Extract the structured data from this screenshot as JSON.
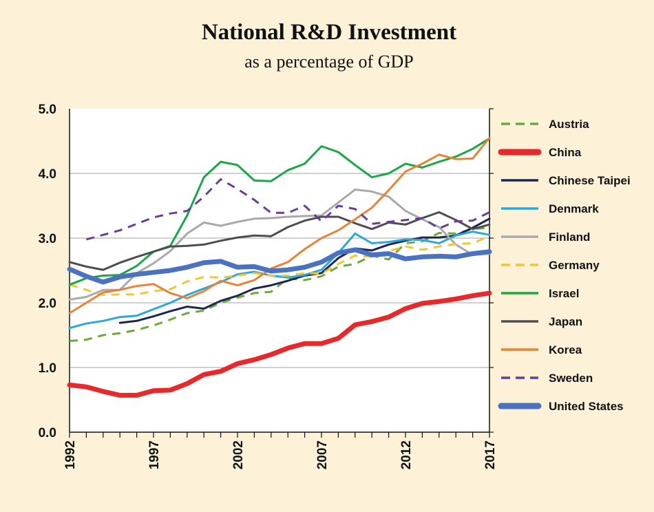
{
  "chart_data": {
    "type": "line",
    "title": "National R&D Investment",
    "subtitle": "as a percentage of GDP",
    "xlabel": "",
    "ylabel": "",
    "xlim": [
      1992,
      2017
    ],
    "ylim": [
      0,
      5
    ],
    "grid": true,
    "legend_position": "right",
    "x_ticks": [
      1992,
      1997,
      2002,
      2007,
      2012,
      2017
    ],
    "y_ticks": [
      0,
      1,
      2,
      3,
      4,
      5
    ],
    "y_tick_labels": [
      "0.0",
      "1.0",
      "2.0",
      "3.0",
      "4.0",
      "5.0"
    ],
    "x_tick_labels": [
      "1992",
      "1997",
      "2002",
      "2007",
      "2012",
      "2017"
    ],
    "series": [
      {
        "name": "Austria",
        "color": "#6aaa3a",
        "dashed": true,
        "heavy": false,
        "x": [
          1992,
          1993,
          1994,
          1995,
          1996,
          1997,
          1998,
          1999,
          2000,
          2001,
          2002,
          2003,
          2004,
          2005,
          2006,
          2007,
          2008,
          2009,
          2010,
          2011,
          2012,
          2013,
          2014,
          2015,
          2016,
          2017
        ],
        "values": [
          1.41,
          1.43,
          1.5,
          1.53,
          1.58,
          1.65,
          1.74,
          1.84,
          1.88,
          2.0,
          2.08,
          2.15,
          2.17,
          2.38,
          2.35,
          2.41,
          2.56,
          2.6,
          2.73,
          2.67,
          2.92,
          2.95,
          3.08,
          3.07,
          3.14,
          3.16
        ]
      },
      {
        "name": "China",
        "color": "#e8292b",
        "dashed": false,
        "heavy": true,
        "x": [
          1992,
          1993,
          1994,
          1995,
          1996,
          1997,
          1998,
          1999,
          2000,
          2001,
          2002,
          2003,
          2004,
          2005,
          2006,
          2007,
          2008,
          2009,
          2010,
          2011,
          2012,
          2013,
          2014,
          2015,
          2016,
          2017
        ],
        "values": [
          0.73,
          0.7,
          0.63,
          0.57,
          0.57,
          0.64,
          0.65,
          0.75,
          0.89,
          0.94,
          1.06,
          1.12,
          1.2,
          1.3,
          1.37,
          1.37,
          1.45,
          1.66,
          1.71,
          1.78,
          1.91,
          1.99,
          2.02,
          2.06,
          2.11,
          2.15
        ]
      },
      {
        "name": "Chinese Taipei",
        "color": "#1c2650",
        "dashed": false,
        "heavy": false,
        "x": [
          1995,
          1996,
          1997,
          1998,
          1999,
          2000,
          2001,
          2002,
          2003,
          2004,
          2005,
          2006,
          2007,
          2008,
          2009,
          2010,
          2011,
          2012,
          2013,
          2014,
          2015,
          2016,
          2017
        ],
        "values": [
          1.69,
          1.72,
          1.79,
          1.87,
          1.94,
          1.91,
          2.03,
          2.11,
          2.22,
          2.27,
          2.34,
          2.42,
          2.46,
          2.69,
          2.84,
          2.81,
          2.9,
          2.96,
          3.01,
          3.01,
          3.04,
          3.16,
          3.3
        ]
      },
      {
        "name": "Denmark",
        "color": "#29a8e0",
        "dashed": false,
        "heavy": false,
        "x": [
          1992,
          1993,
          1994,
          1995,
          1996,
          1997,
          1998,
          1999,
          2000,
          2001,
          2002,
          2003,
          2004,
          2005,
          2006,
          2007,
          2008,
          2009,
          2010,
          2011,
          2012,
          2013,
          2014,
          2015,
          2016,
          2017
        ],
        "values": [
          1.61,
          1.68,
          1.72,
          1.78,
          1.8,
          1.9,
          2.0,
          2.12,
          2.22,
          2.32,
          2.44,
          2.48,
          2.42,
          2.39,
          2.43,
          2.51,
          2.77,
          3.07,
          2.92,
          2.94,
          2.98,
          2.97,
          2.92,
          3.04,
          3.1,
          3.05
        ]
      },
      {
        "name": "Finland",
        "color": "#a9a9a9",
        "dashed": false,
        "heavy": false,
        "x": [
          1992,
          1993,
          1994,
          1995,
          1996,
          1997,
          1998,
          1999,
          2000,
          2001,
          2002,
          2003,
          2004,
          2005,
          2006,
          2007,
          2008,
          2009,
          2010,
          2011,
          2012,
          2013,
          2014,
          2015,
          2016,
          2017
        ],
        "values": [
          2.05,
          2.09,
          2.2,
          2.2,
          2.46,
          2.61,
          2.8,
          3.07,
          3.24,
          3.19,
          3.25,
          3.3,
          3.31,
          3.33,
          3.34,
          3.35,
          3.55,
          3.75,
          3.72,
          3.64,
          3.42,
          3.29,
          3.17,
          2.9,
          2.74,
          2.76
        ]
      },
      {
        "name": "Germany",
        "color": "#f4c530",
        "dashed": true,
        "heavy": false,
        "x": [
          1992,
          1993,
          1994,
          1995,
          1996,
          1997,
          1998,
          1999,
          2000,
          2001,
          2002,
          2003,
          2004,
          2005,
          2006,
          2007,
          2008,
          2009,
          2010,
          2011,
          2012,
          2013,
          2014,
          2015,
          2016,
          2017
        ],
        "values": [
          2.28,
          2.2,
          2.12,
          2.13,
          2.13,
          2.18,
          2.21,
          2.33,
          2.4,
          2.39,
          2.42,
          2.46,
          2.42,
          2.42,
          2.46,
          2.45,
          2.6,
          2.73,
          2.71,
          2.8,
          2.87,
          2.82,
          2.87,
          2.91,
          2.92,
          3.03
        ]
      },
      {
        "name": "Israel",
        "color": "#17a844",
        "dashed": false,
        "heavy": false,
        "x": [
          1992,
          1993,
          1994,
          1995,
          1996,
          1997,
          1998,
          1999,
          2000,
          2001,
          2002,
          2003,
          2004,
          2005,
          2006,
          2007,
          2008,
          2009,
          2010,
          2011,
          2012,
          2013,
          2014,
          2015,
          2016,
          2017
        ],
        "values": [
          2.28,
          2.38,
          2.42,
          2.43,
          2.57,
          2.79,
          2.88,
          3.35,
          3.94,
          4.18,
          4.13,
          3.89,
          3.88,
          4.05,
          4.15,
          4.42,
          4.33,
          4.13,
          3.94,
          4.0,
          4.15,
          4.09,
          4.18,
          4.26,
          4.38,
          4.54
        ]
      },
      {
        "name": "Japan",
        "color": "#4d4d4d",
        "dashed": false,
        "heavy": false,
        "x": [
          1992,
          1993,
          1994,
          1995,
          1996,
          1997,
          1998,
          1999,
          2000,
          2001,
          2002,
          2003,
          2004,
          2005,
          2006,
          2007,
          2008,
          2009,
          2010,
          2011,
          2012,
          2013,
          2014,
          2015,
          2016,
          2017
        ],
        "values": [
          2.63,
          2.56,
          2.51,
          2.62,
          2.71,
          2.79,
          2.87,
          2.88,
          2.9,
          2.96,
          3.01,
          3.04,
          3.03,
          3.17,
          3.27,
          3.33,
          3.33,
          3.23,
          3.14,
          3.24,
          3.21,
          3.31,
          3.4,
          3.28,
          3.14,
          3.21
        ]
      },
      {
        "name": "Korea",
        "color": "#ea8134",
        "dashed": false,
        "heavy": false,
        "x": [
          1992,
          1993,
          1994,
          1995,
          1996,
          1997,
          1998,
          1999,
          2000,
          2001,
          2002,
          2003,
          2004,
          2005,
          2006,
          2007,
          2008,
          2009,
          2010,
          2011,
          2012,
          2013,
          2014,
          2015,
          2016,
          2017
        ],
        "values": [
          1.84,
          2.0,
          2.16,
          2.2,
          2.26,
          2.29,
          2.15,
          2.07,
          2.18,
          2.34,
          2.27,
          2.35,
          2.53,
          2.63,
          2.83,
          3.0,
          3.12,
          3.29,
          3.47,
          3.74,
          4.03,
          4.15,
          4.29,
          4.22,
          4.23,
          4.55
        ]
      },
      {
        "name": "Sweden",
        "color": "#6b3d9a",
        "dashed": true,
        "heavy": false,
        "x": [
          1993,
          1994,
          1995,
          1996,
          1997,
          1998,
          1999,
          2000,
          2001,
          2002,
          2003,
          2004,
          2005,
          2006,
          2007,
          2008,
          2009,
          2010,
          2011,
          2012,
          2013,
          2014,
          2015,
          2016,
          2017
        ],
        "values": [
          2.98,
          3.05,
          3.12,
          3.22,
          3.32,
          3.38,
          3.42,
          3.64,
          3.91,
          3.76,
          3.59,
          3.39,
          3.39,
          3.5,
          3.26,
          3.5,
          3.45,
          3.22,
          3.25,
          3.28,
          3.31,
          3.15,
          3.26,
          3.27,
          3.4
        ]
      },
      {
        "name": "United States",
        "color": "#4a72c0",
        "dashed": false,
        "heavy": true,
        "x": [
          1992,
          1993,
          1994,
          1995,
          1996,
          1997,
          1998,
          1999,
          2000,
          2001,
          2002,
          2003,
          2004,
          2005,
          2006,
          2007,
          2008,
          2009,
          2010,
          2011,
          2012,
          2013,
          2014,
          2015,
          2016,
          2017
        ],
        "values": [
          2.52,
          2.41,
          2.32,
          2.4,
          2.44,
          2.47,
          2.5,
          2.55,
          2.62,
          2.64,
          2.55,
          2.56,
          2.49,
          2.51,
          2.55,
          2.63,
          2.77,
          2.82,
          2.74,
          2.76,
          2.68,
          2.71,
          2.72,
          2.71,
          2.76,
          2.79
        ]
      }
    ]
  }
}
